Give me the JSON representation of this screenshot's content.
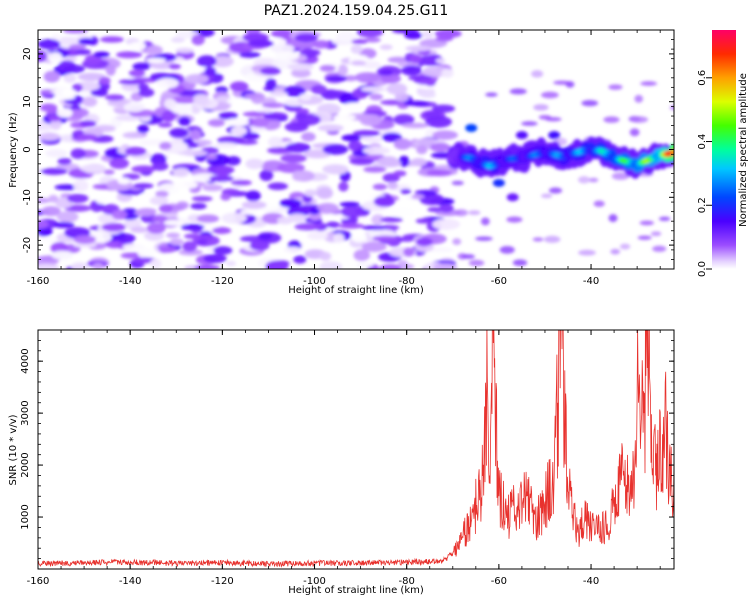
{
  "figure": {
    "title": "PAZ1.2024.159.04.25.G11"
  },
  "chart_data": [
    {
      "type": "heatmap",
      "xlabel": "Height of straight line (km)",
      "ylabel": "Frequency (Hz)",
      "xlim": [
        -160,
        -22
      ],
      "ylim": [
        -25,
        25
      ],
      "xticks": [
        -160,
        -140,
        -120,
        -100,
        -80,
        -60,
        -40
      ],
      "yticks": [
        -20,
        -10,
        0,
        10,
        20
      ],
      "grid": false,
      "colorbar": {
        "label": "Normalized spectral amplitude",
        "range": [
          0.0,
          0.75
        ],
        "ticks": [
          0.0,
          0.2,
          0.4,
          0.6
        ],
        "colormap": "gist_rainbow (white at zero)"
      },
      "description_of_values": {
        "noise_region_x": [
          -160,
          -71
        ],
        "noise_region_y": [
          -25,
          25
        ],
        "noise_amplitude_max": 0.15,
        "signal_ridge": {
          "x": [
            -70,
            -66,
            -62,
            -58,
            -54,
            -50,
            -46,
            -42,
            -38,
            -34,
            -30,
            -26,
            -22
          ],
          "freq_hz": [
            -1.2,
            -1.8,
            -3.5,
            -2.0,
            -1.6,
            -0.5,
            -1.5,
            -0.3,
            -0.2,
            -2.0,
            -3.2,
            -1.5,
            -0.6
          ],
          "amplitude": [
            0.18,
            0.28,
            0.32,
            0.24,
            0.26,
            0.28,
            0.3,
            0.32,
            0.35,
            0.42,
            0.48,
            0.52,
            0.74
          ]
        }
      }
    },
    {
      "type": "line",
      "xlabel": "Height of straight line (km)",
      "ylabel": "SNR (10 * v/v)",
      "xlim": [
        -160,
        -22
      ],
      "ylim": [
        0,
        4600
      ],
      "xticks": [
        -160,
        -140,
        -120,
        -100,
        -80,
        -60,
        -40
      ],
      "yticks": [
        1000,
        2000,
        3000,
        4000
      ],
      "grid": false,
      "series": [
        {
          "color": "#e8322e",
          "x": [
            -160,
            -150,
            -140,
            -130,
            -120,
            -110,
            -100,
            -90,
            -80,
            -75,
            -72,
            -70,
            -68,
            -66,
            -64,
            -62.5,
            -62,
            -61.2,
            -60,
            -58,
            -56,
            -54,
            -52,
            -50,
            -48,
            -47.2,
            -46.5,
            -45,
            -43,
            -41,
            -39,
            -37,
            -35,
            -33,
            -31,
            -30,
            -28.5,
            -27.5,
            -26,
            -24,
            -22.5,
            -22
          ],
          "values": [
            100,
            120,
            130,
            110,
            120,
            100,
            110,
            115,
            130,
            140,
            160,
            300,
            600,
            900,
            1500,
            3700,
            1800,
            4350,
            1400,
            1000,
            1200,
            1400,
            900,
            1300,
            1800,
            3200,
            4600,
            1500,
            700,
            1000,
            700,
            800,
            1200,
            1800,
            1400,
            3300,
            3000,
            4050,
            1800,
            2800,
            1600,
            2100
          ]
        }
      ]
    }
  ]
}
